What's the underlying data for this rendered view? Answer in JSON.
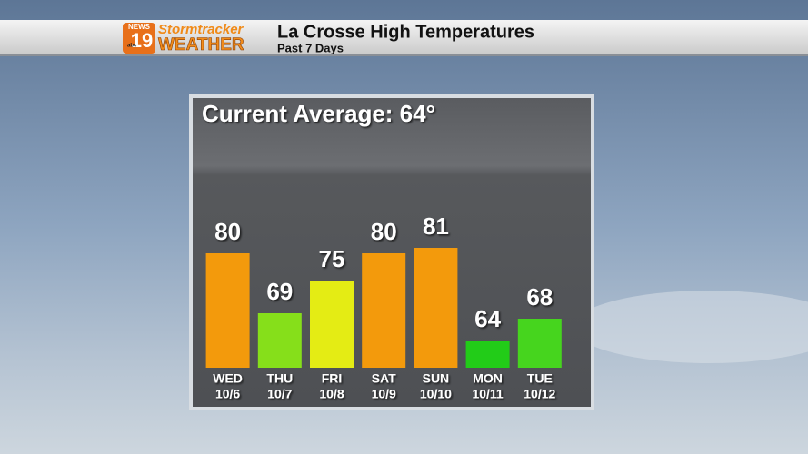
{
  "header": {
    "logo": {
      "news": "NEWS",
      "number": "19",
      "network": "abc",
      "brand_top": "Stormtracker",
      "brand_bottom": "WEATHER"
    },
    "title": "La Crosse High Temperatures",
    "subtitle": "Past 7 Days"
  },
  "chart_data": {
    "type": "bar",
    "title": "Current Average: 64°",
    "categories": [
      "WED",
      "THU",
      "FRI",
      "SAT",
      "SUN",
      "MON",
      "TUE"
    ],
    "dates": [
      "10/6",
      "10/7",
      "10/8",
      "10/9",
      "10/10",
      "10/11",
      "10/12"
    ],
    "values": [
      80,
      69,
      75,
      80,
      81,
      64,
      68
    ],
    "colors": [
      "#f39a0c",
      "#86df1a",
      "#e4ec14",
      "#f39a0c",
      "#f39a0c",
      "#22cc18",
      "#46d51e"
    ],
    "ylim": [
      59,
      85
    ]
  }
}
